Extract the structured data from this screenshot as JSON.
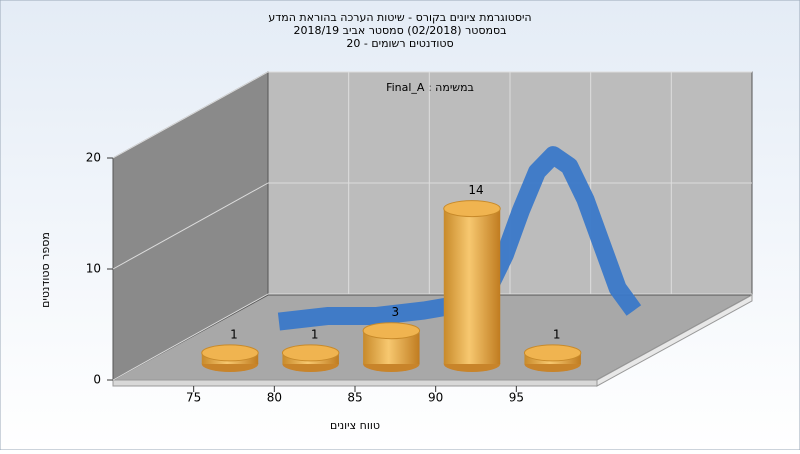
{
  "chart_data": {
    "type": "histogram",
    "title": [
      "היסטוגרמת ציונים בקורס - שיטות הערכה בהוראת המדע",
      "בסמסטר (02/2018) סמסטר אביב 2018/19",
      "סטודנטים רשומים - 20"
    ],
    "annotation": "Final_A : במשימה",
    "x_label": "טווח ציונים",
    "y_label": "מספר סטודנטים",
    "bins": [
      75,
      80,
      85,
      90,
      95,
      100
    ],
    "counts": [
      1,
      1,
      3,
      14,
      1
    ],
    "color": "#e0a040",
    "curve": {
      "color": "#3a78c8",
      "x": [
        75,
        78,
        81,
        84,
        86,
        88,
        89,
        90,
        91,
        92,
        93,
        94,
        95,
        96,
        97
      ],
      "values": [
        1,
        1.5,
        1.5,
        2,
        2.5,
        4,
        7,
        11,
        14.5,
        16,
        15,
        12,
        8,
        4,
        2
      ]
    },
    "xlim": [
      70,
      100
    ],
    "xticks": [
      75,
      80,
      85,
      90,
      95
    ],
    "ylim": [
      0,
      20
    ],
    "yticks": [
      0,
      10,
      20
    ],
    "grid": true
  }
}
